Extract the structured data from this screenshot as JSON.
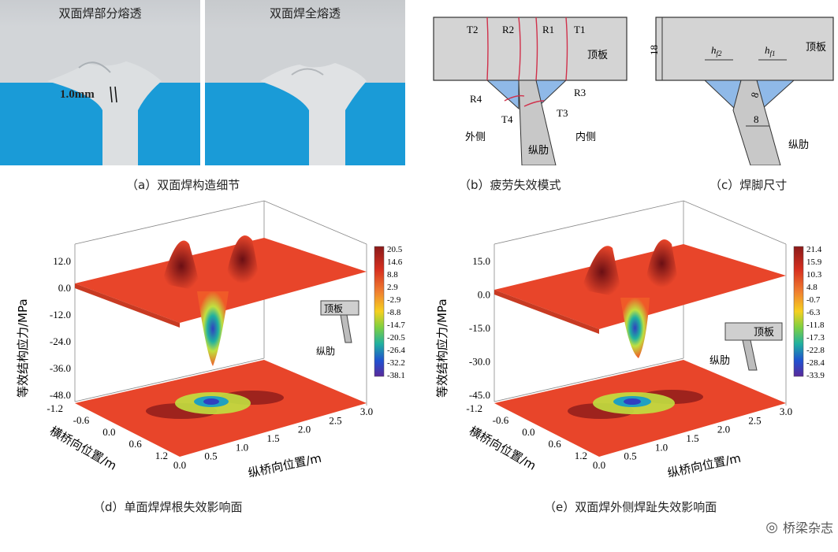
{
  "panel_a": {
    "left_title": "双面焊部分熔透",
    "right_title": "双面焊全熔透",
    "measure": "1.0mm",
    "caption": "（a）双面焊构造细节"
  },
  "panel_b": {
    "labels": {
      "t2": "T2",
      "r2": "R2",
      "r1": "R1",
      "t1": "T1",
      "top_plate": "顶板",
      "r4": "R4",
      "r3": "R3",
      "t4": "T4",
      "t3": "T3",
      "outside": "外侧",
      "rib": "纵肋",
      "inside": "内侧"
    },
    "caption": "（b）疲劳失效模式"
  },
  "panel_c": {
    "labels": {
      "thickness": "18",
      "hf2": "h",
      "hf2_sub": "f2",
      "hf1": "h",
      "hf1_sub": "f1",
      "top_plate": "顶板",
      "leg": "8",
      "rib_width": "8",
      "rib": "纵肋"
    },
    "caption": "（c）焊脚尺寸"
  },
  "chart_data": [
    {
      "type": "surface3d",
      "ylabel": "等效结构应力/MPa",
      "xlabel": "纵桥向位置/m",
      "zlabel": "横桥向位置/m",
      "z_ticks": [
        "12.0",
        "0.0",
        "-12.0",
        "-24.0",
        "-36.0",
        "-48.0"
      ],
      "x_ticks": [
        "0.0",
        "0.5",
        "1.0",
        "1.5",
        "2.0",
        "2.5",
        "3.0"
      ],
      "y_ticks": [
        "-1.2",
        "-0.6",
        "0.0",
        "0.6",
        "1.2"
      ],
      "colorbar": [
        "20.5",
        "14.6",
        "8.8",
        "2.9",
        "-2.9",
        "-8.8",
        "-14.7",
        "-20.5",
        "-26.4",
        "-32.2",
        "-38.1"
      ],
      "inset_labels": [
        "顶板",
        "纵肋"
      ],
      "caption": "（d）单面焊焊根失效影响面"
    },
    {
      "type": "surface3d",
      "ylabel": "等效结构应力/MPa",
      "xlabel": "纵桥向位置/m",
      "zlabel": "横桥向位置/m",
      "z_ticks": [
        "15.0",
        "0.0",
        "-15.0",
        "-30.0",
        "-45.0"
      ],
      "x_ticks": [
        "0.0",
        "0.5",
        "1.0",
        "1.5",
        "2.0",
        "2.5",
        "3.0"
      ],
      "y_ticks": [
        "-1.2",
        "-0.6",
        "0.0",
        "0.6",
        "1.2"
      ],
      "colorbar": [
        "21.4",
        "15.9",
        "10.3",
        "4.8",
        "-0.7",
        "-6.3",
        "-11.8",
        "-17.3",
        "-22.8",
        "-28.4",
        "-33.9"
      ],
      "inset_labels": [
        "顶板",
        "纵肋"
      ],
      "caption": "（e）双面焊外侧焊趾失效影响面"
    }
  ],
  "colors": {
    "sky_blue": "#1a9bd7",
    "plate_gray": "#d4d4d4",
    "weld_blue": "#8fb9e8",
    "crack_red": "#d0304a"
  },
  "watermark": "桥梁杂志"
}
